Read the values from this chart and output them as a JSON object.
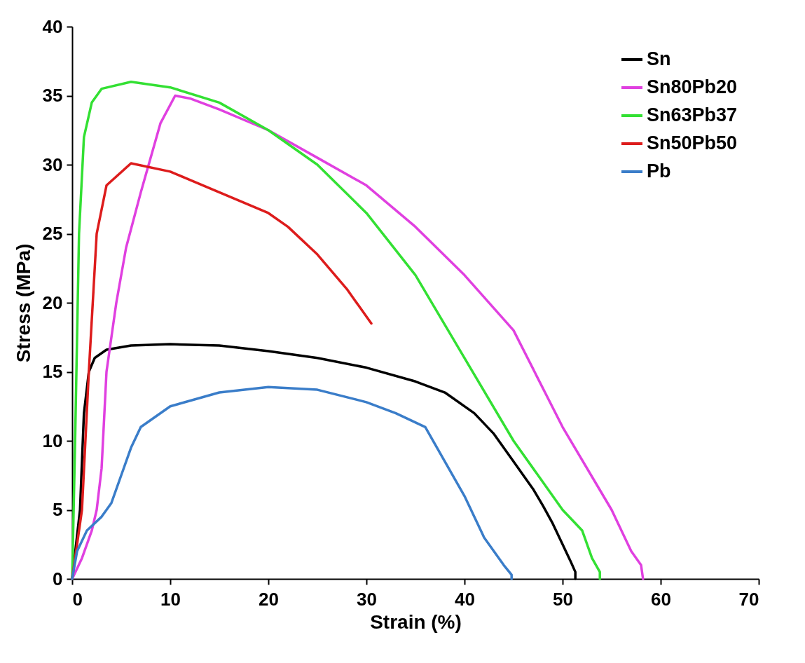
{
  "chart_data": {
    "type": "line",
    "xlabel": "Strain (%)",
    "ylabel": "Stress (MPa)",
    "xlim": [
      0,
      70
    ],
    "ylim": [
      0,
      40
    ],
    "xticks": [
      0,
      10,
      20,
      30,
      40,
      50,
      60,
      70
    ],
    "yticks": [
      0,
      5,
      10,
      15,
      20,
      25,
      30,
      35,
      40
    ],
    "grid": false,
    "legend": "top right",
    "marker": "none",
    "line_style": "solid",
    "series": [
      {
        "name": "Sn",
        "color": "#000000",
        "x": [
          0,
          0.8,
          1.2,
          1.7,
          2.3,
          3.5,
          6,
          10,
          15,
          20,
          25,
          30,
          35,
          38,
          41,
          43,
          45,
          47,
          48,
          49,
          50,
          50.8,
          51.3,
          51.3
        ],
        "values": [
          0,
          5,
          12,
          15,
          16,
          16.6,
          16.9,
          17,
          16.9,
          16.5,
          16,
          15.3,
          14.3,
          13.5,
          12,
          10.5,
          8.5,
          6.5,
          5.3,
          4,
          2.5,
          1.3,
          0.5,
          0
        ]
      },
      {
        "name": "Sn80Pb20",
        "color": "#e040e0",
        "x": [
          0,
          1,
          2,
          2.5,
          3,
          3.5,
          4.5,
          5.5,
          7,
          9,
          10.5,
          12,
          15,
          20,
          25,
          30,
          35,
          40,
          45,
          50,
          55,
          57,
          58,
          58.2
        ],
        "values": [
          0,
          1.5,
          3.5,
          5,
          8,
          15,
          20,
          24,
          28,
          33,
          35,
          34.8,
          34,
          32.5,
          30.5,
          28.5,
          25.5,
          22,
          18,
          11,
          5,
          2,
          1,
          0
        ]
      },
      {
        "name": "Sn63Pb37",
        "color": "#33e033",
        "x": [
          0,
          0.3,
          0.7,
          1.2,
          2,
          3,
          6,
          10,
          15,
          20,
          25,
          30,
          35,
          40,
          45,
          50,
          52,
          53,
          53.8,
          53.8
        ],
        "values": [
          0,
          10,
          25,
          32,
          34.5,
          35.5,
          36,
          35.6,
          34.5,
          32.5,
          30,
          26.5,
          22,
          16,
          10,
          5,
          3.5,
          1.5,
          0.5,
          0
        ]
      },
      {
        "name": "Sn50Pb50",
        "color": "#dd1c1c",
        "x": [
          0,
          1,
          1.7,
          2.5,
          3.5,
          6,
          10,
          15,
          20,
          22,
          25,
          28,
          30.5
        ],
        "values": [
          0,
          5,
          15,
          25,
          28.5,
          30.1,
          29.5,
          28,
          26.5,
          25.5,
          23.5,
          21,
          18.5
        ]
      },
      {
        "name": "Pb",
        "color": "#3a7dc9",
        "x": [
          0,
          0.5,
          1.5,
          3,
          4,
          5,
          6,
          7,
          10,
          15,
          20,
          25,
          30,
          33,
          36,
          38,
          40,
          42,
          44,
          44.8,
          44.8
        ],
        "values": [
          0,
          2,
          3.5,
          4.5,
          5.5,
          7.5,
          9.5,
          11,
          12.5,
          13.5,
          13.9,
          13.7,
          12.8,
          12,
          11,
          8.5,
          6,
          3,
          1,
          0.3,
          0
        ]
      }
    ]
  }
}
